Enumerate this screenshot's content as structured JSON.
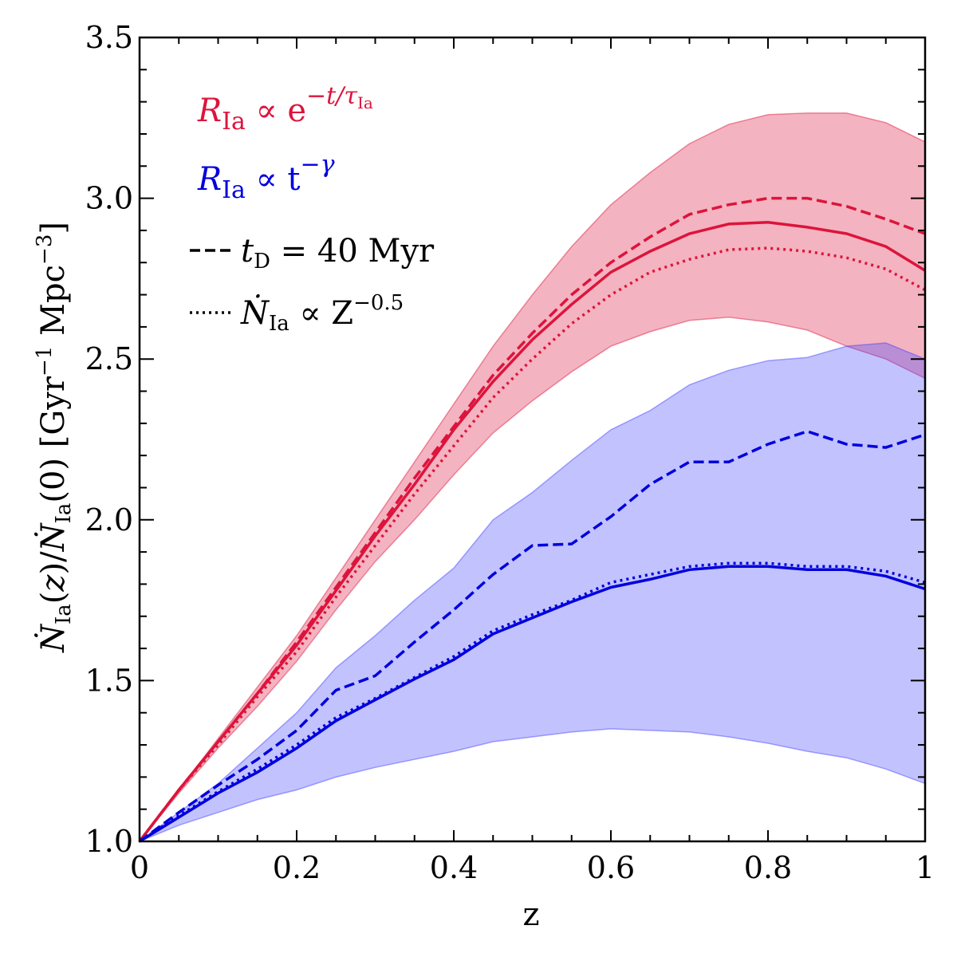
{
  "chart_data": {
    "type": "line",
    "title": "",
    "xlabel": "z",
    "ylabel": "Ṅ_Ia(z)/Ṅ_Ia(0) [Gyr^-1 Mpc^-3]",
    "xlim": [
      0,
      1
    ],
    "ylim": [
      1.0,
      3.5
    ],
    "grid": false,
    "x_ticks": [
      0,
      0.2,
      0.4,
      0.6,
      0.8,
      1
    ],
    "x_tick_labels": [
      "0",
      "0.2",
      "0.4",
      "0.6",
      "0.8",
      "1"
    ],
    "y_ticks": [
      1.0,
      1.5,
      2.0,
      2.5,
      3.0,
      3.5
    ],
    "y_tick_labels": [
      "1.0",
      "1.5",
      "2.0",
      "2.5",
      "3.0",
      "3.5"
    ],
    "legend_placement": "top-left",
    "legend": {
      "exp": {
        "prefix": "R",
        "sub": "Ia",
        "rel": " ∝ e",
        "sup": "−t/τ",
        "supsub": "Ia",
        "color": "#dc143c"
      },
      "pow": {
        "prefix": "R",
        "sub": "Ia",
        "rel": " ∝ t",
        "sup": "−γ",
        "color": "#0000dd"
      },
      "dashed": {
        "lead": "t",
        "sub": "D",
        "rest": " = 40 Myr"
      },
      "dotted": {
        "lead": "Ṅ",
        "sub": "Ia",
        "rest": " ∝ Z",
        "sup": "−0.5"
      }
    },
    "x": [
      0,
      0.05,
      0.1,
      0.15,
      0.2,
      0.25,
      0.3,
      0.35,
      0.4,
      0.45,
      0.5,
      0.55,
      0.6,
      0.65,
      0.7,
      0.75,
      0.8,
      0.85,
      0.9,
      0.95,
      1.0
    ],
    "bands": [
      {
        "group": "exponential",
        "color": "#dc143c",
        "upper": [
          1.0,
          1.16,
          1.32,
          1.48,
          1.64,
          1.82,
          2.0,
          2.18,
          2.36,
          2.54,
          2.7,
          2.85,
          2.98,
          3.08,
          3.17,
          3.23,
          3.26,
          3.265,
          3.265,
          3.235,
          3.175
        ],
        "lower": [
          1.0,
          1.15,
          1.29,
          1.42,
          1.56,
          1.72,
          1.87,
          2.0,
          2.14,
          2.27,
          2.37,
          2.46,
          2.54,
          2.585,
          2.62,
          2.63,
          2.615,
          2.59,
          2.54,
          2.5,
          2.44
        ]
      },
      {
        "group": "power-law",
        "color": "#4040ff",
        "upper": [
          1.0,
          1.09,
          1.18,
          1.29,
          1.4,
          1.54,
          1.64,
          1.75,
          1.85,
          2.0,
          2.085,
          2.185,
          2.28,
          2.34,
          2.42,
          2.465,
          2.495,
          2.505,
          2.54,
          2.55,
          2.5
        ],
        "lower": [
          1.0,
          1.05,
          1.09,
          1.13,
          1.16,
          1.2,
          1.23,
          1.255,
          1.28,
          1.31,
          1.325,
          1.34,
          1.35,
          1.345,
          1.34,
          1.325,
          1.305,
          1.28,
          1.26,
          1.225,
          1.18
        ]
      }
    ],
    "series": [
      {
        "group": "exponential",
        "style": "solid",
        "color": "#dc143c",
        "values": [
          1.0,
          1.16,
          1.31,
          1.46,
          1.61,
          1.78,
          1.95,
          2.11,
          2.28,
          2.43,
          2.56,
          2.67,
          2.77,
          2.835,
          2.89,
          2.92,
          2.925,
          2.91,
          2.89,
          2.85,
          2.775
        ]
      },
      {
        "group": "exponential",
        "style": "dashed",
        "color": "#dc143c",
        "values": [
          1.0,
          1.16,
          1.31,
          1.46,
          1.62,
          1.79,
          1.96,
          2.13,
          2.29,
          2.45,
          2.58,
          2.7,
          2.8,
          2.88,
          2.95,
          2.98,
          3.0,
          3.0,
          2.975,
          2.935,
          2.89
        ]
      },
      {
        "group": "exponential",
        "style": "dotted",
        "color": "#dc143c",
        "values": [
          1.0,
          1.16,
          1.3,
          1.45,
          1.59,
          1.76,
          1.92,
          2.08,
          2.23,
          2.38,
          2.5,
          2.61,
          2.7,
          2.77,
          2.81,
          2.84,
          2.845,
          2.835,
          2.815,
          2.78,
          2.715
        ]
      },
      {
        "group": "power-law",
        "style": "solid",
        "color": "#0000dd",
        "values": [
          1.0,
          1.075,
          1.15,
          1.215,
          1.29,
          1.375,
          1.44,
          1.505,
          1.565,
          1.645,
          1.695,
          1.745,
          1.79,
          1.815,
          1.845,
          1.855,
          1.855,
          1.845,
          1.845,
          1.825,
          1.785
        ]
      },
      {
        "group": "power-law",
        "style": "dashed",
        "color": "#0000dd",
        "values": [
          1.0,
          1.09,
          1.175,
          1.255,
          1.345,
          1.47,
          1.515,
          1.62,
          1.72,
          1.83,
          1.92,
          1.925,
          2.01,
          2.11,
          2.18,
          2.18,
          2.235,
          2.275,
          2.235,
          2.225,
          2.265
        ]
      },
      {
        "group": "power-law",
        "style": "dotted",
        "color": "#0000dd",
        "values": [
          1.0,
          1.08,
          1.155,
          1.225,
          1.3,
          1.385,
          1.445,
          1.51,
          1.575,
          1.655,
          1.705,
          1.75,
          1.805,
          1.83,
          1.855,
          1.865,
          1.865,
          1.855,
          1.855,
          1.84,
          1.805
        ]
      }
    ]
  }
}
